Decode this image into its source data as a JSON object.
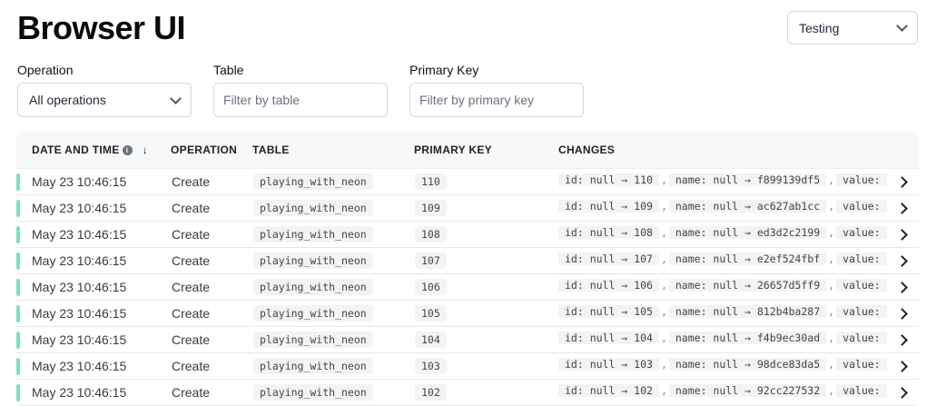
{
  "title": "Browser UI",
  "environment": {
    "selected": "Testing"
  },
  "filters": {
    "operation": {
      "label": "Operation",
      "selected": "All operations"
    },
    "table": {
      "label": "Table",
      "placeholder": "Filter by table"
    },
    "primary_key": {
      "label": "Primary Key",
      "placeholder": "Filter by primary key"
    }
  },
  "columns": {
    "date": "DATE AND TIME",
    "operation": "OPERATION",
    "table": "TABLE",
    "primary_key": "PRIMARY KEY",
    "changes": "CHANGES",
    "sort_icon": "arrow-down",
    "info_icon": "info"
  },
  "status_color": "#7ee2b8",
  "rows": [
    {
      "date": "May 23 10:46:15",
      "operation": "Create",
      "table": "playing_with_neon",
      "pk": "110",
      "changes": [
        "id: null → 110",
        "name: null → f899139df5",
        "value:"
      ]
    },
    {
      "date": "May 23 10:46:15",
      "operation": "Create",
      "table": "playing_with_neon",
      "pk": "109",
      "changes": [
        "id: null → 109",
        "name: null → ac627ab1cc",
        "value:"
      ]
    },
    {
      "date": "May 23 10:46:15",
      "operation": "Create",
      "table": "playing_with_neon",
      "pk": "108",
      "changes": [
        "id: null → 108",
        "name: null → ed3d2c2199",
        "value:"
      ]
    },
    {
      "date": "May 23 10:46:15",
      "operation": "Create",
      "table": "playing_with_neon",
      "pk": "107",
      "changes": [
        "id: null → 107",
        "name: null → e2ef524fbf",
        "value:"
      ]
    },
    {
      "date": "May 23 10:46:15",
      "operation": "Create",
      "table": "playing_with_neon",
      "pk": "106",
      "changes": [
        "id: null → 106",
        "name: null → 26657d5ff9",
        "value:"
      ]
    },
    {
      "date": "May 23 10:46:15",
      "operation": "Create",
      "table": "playing_with_neon",
      "pk": "105",
      "changes": [
        "id: null → 105",
        "name: null → 812b4ba287",
        "value:"
      ]
    },
    {
      "date": "May 23 10:46:15",
      "operation": "Create",
      "table": "playing_with_neon",
      "pk": "104",
      "changes": [
        "id: null → 104",
        "name: null → f4b9ec30ad",
        "value:"
      ]
    },
    {
      "date": "May 23 10:46:15",
      "operation": "Create",
      "table": "playing_with_neon",
      "pk": "103",
      "changes": [
        "id: null → 103",
        "name: null → 98dce83da5",
        "value:"
      ]
    },
    {
      "date": "May 23 10:46:15",
      "operation": "Create",
      "table": "playing_with_neon",
      "pk": "102",
      "changes": [
        "id: null → 102",
        "name: null → 92cc227532",
        "value:"
      ]
    }
  ]
}
